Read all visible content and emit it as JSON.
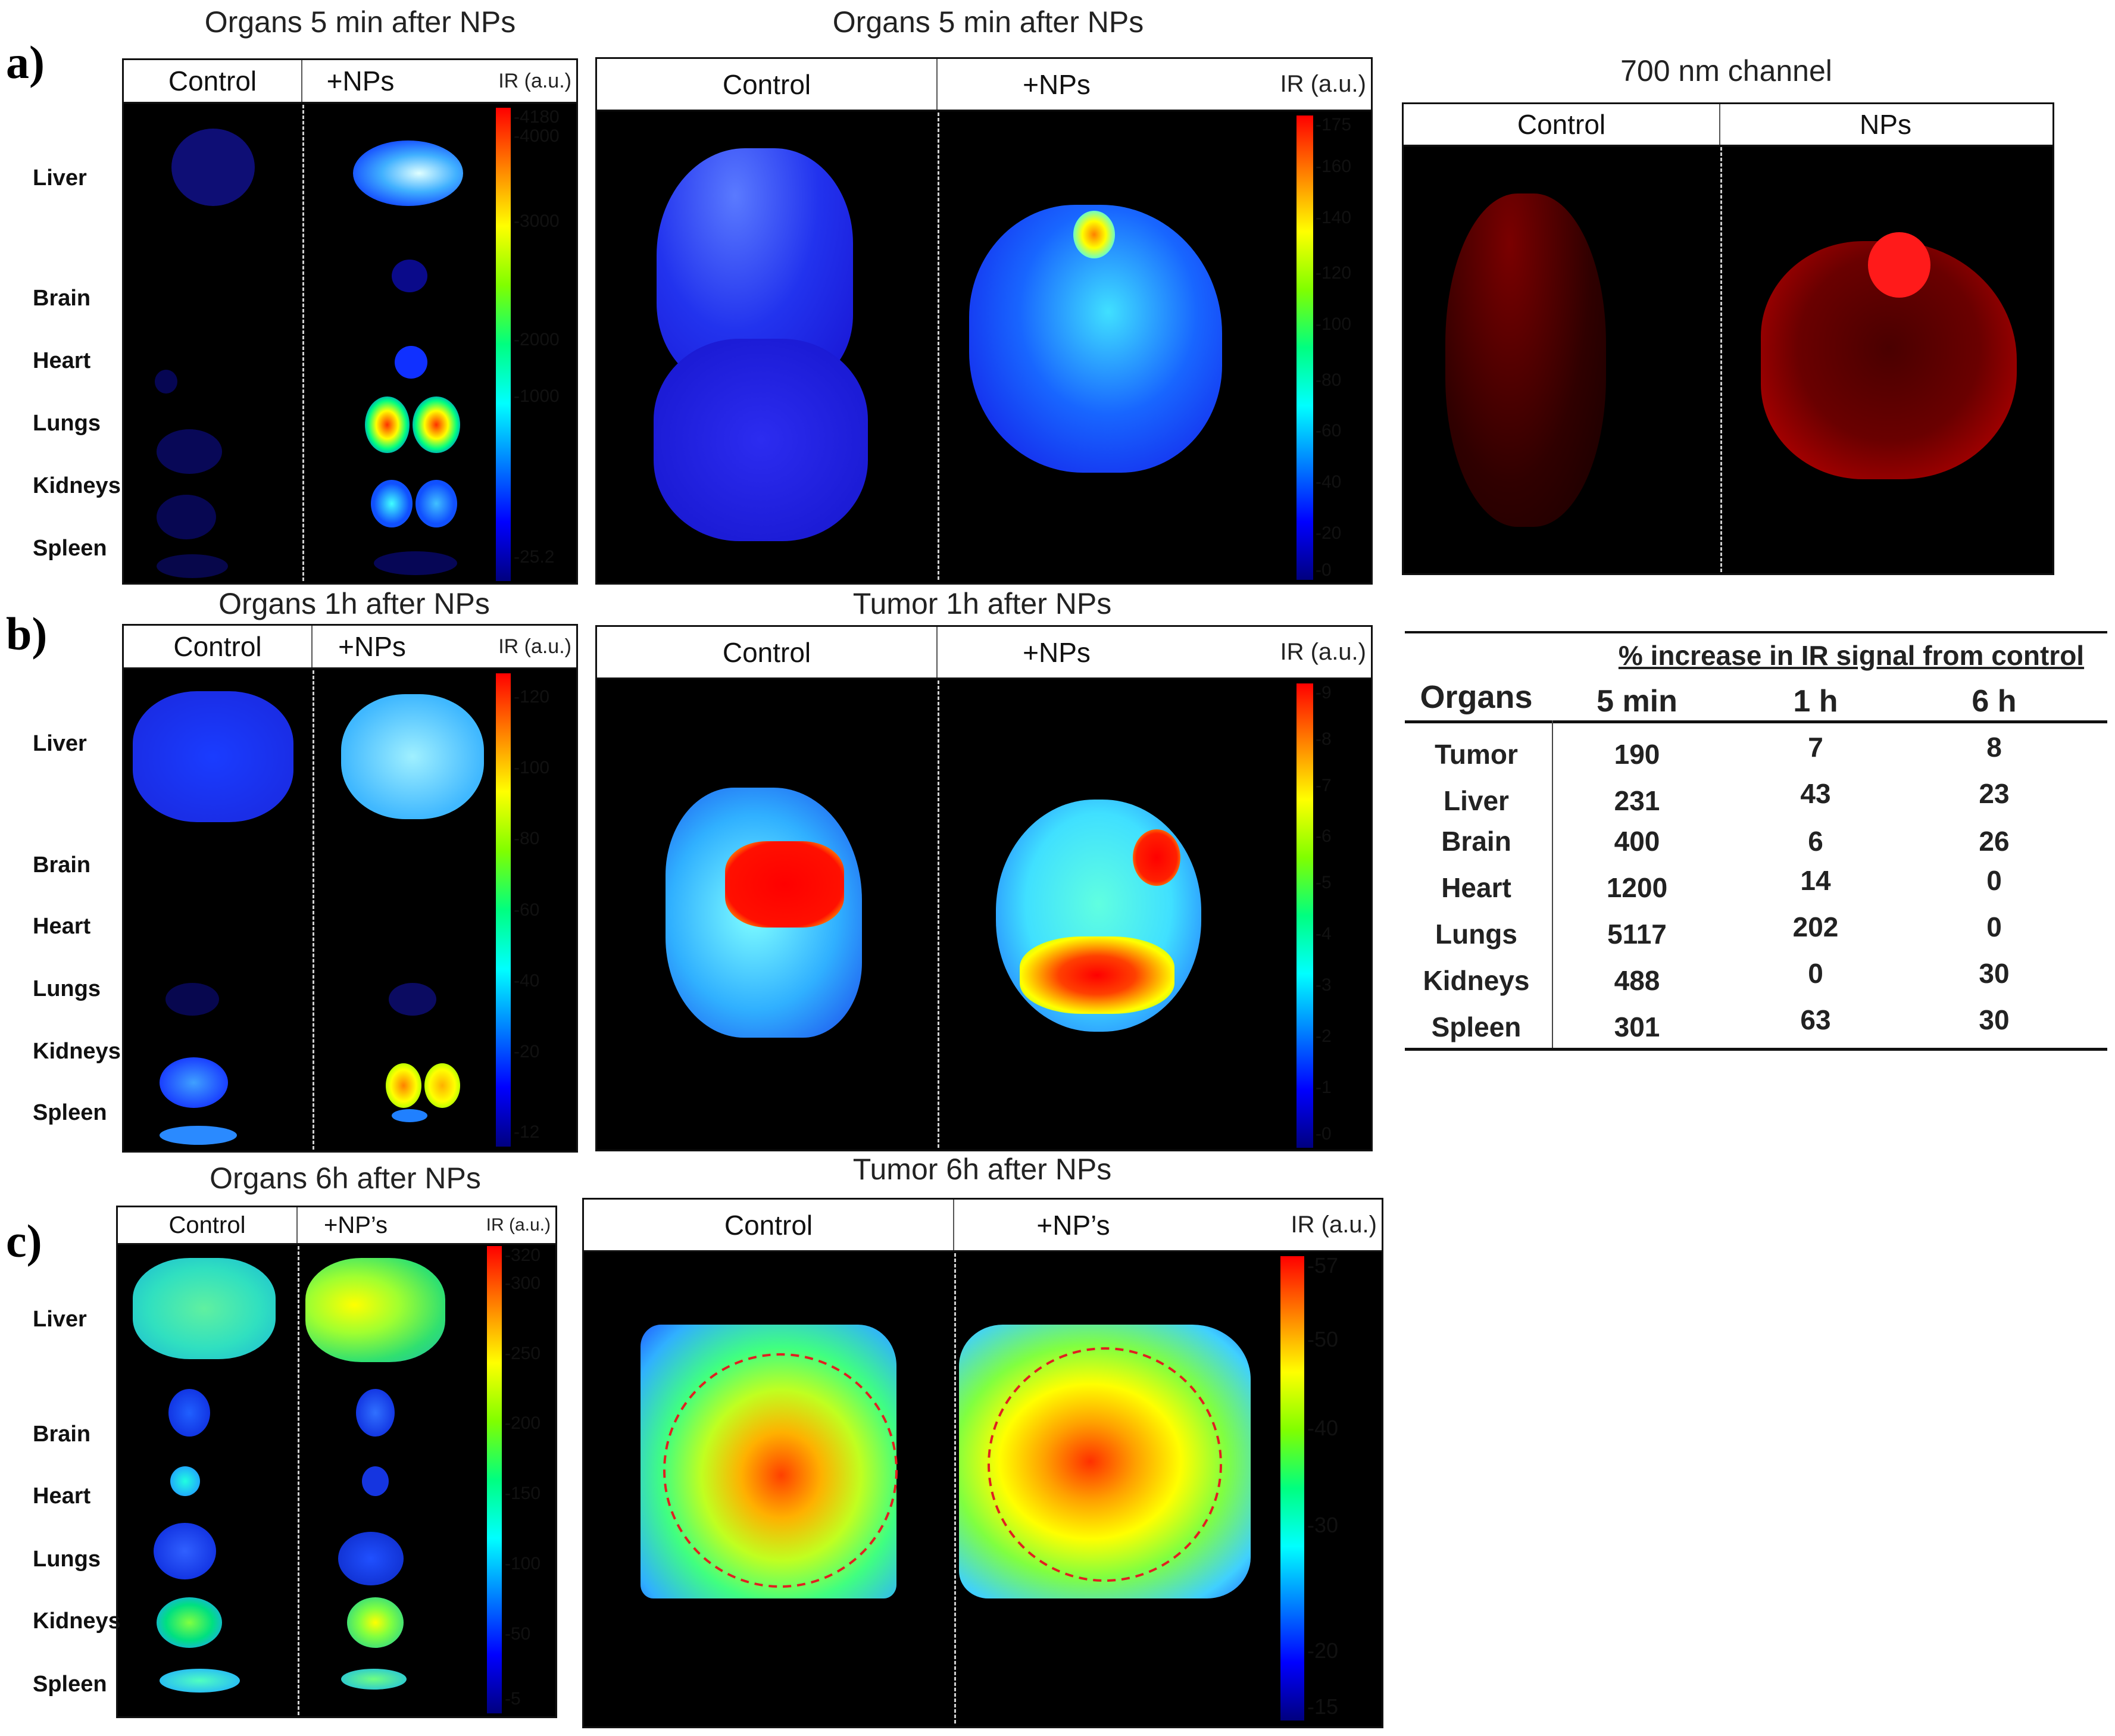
{
  "panel_labels": {
    "a": "a)",
    "b": "b)",
    "c": "c)"
  },
  "row_a": {
    "organs_title": "Organs 5 min after NPs",
    "organs_headers": [
      "Control",
      "+NPs"
    ],
    "organs_ir_unit": "IR (a.u.)",
    "organs_scale": [
      "4180",
      "4000",
      "3000",
      "2000",
      "1000",
      "25.2"
    ],
    "tumor_title": "Organs 5 min after NPs",
    "tumor_headers": [
      "Control",
      "+NPs"
    ],
    "tumor_ir_unit": "IR (a.u.)",
    "tumor_scale": [
      "175",
      "160",
      "140",
      "120",
      "100",
      "80",
      "60",
      "40",
      "20",
      "0"
    ],
    "channel_title": "700 nm channel",
    "channel_headers": [
      "Control",
      "NPs"
    ]
  },
  "row_b": {
    "organs_title": "Organs 1h after NPs",
    "organs_headers": [
      "Control",
      "+NPs"
    ],
    "organs_ir_unit": "IR (a.u.)",
    "organs_scale": [
      "120",
      "100",
      "80",
      "60",
      "40",
      "20",
      "12"
    ],
    "tumor_title": "Tumor 1h after NPs",
    "tumor_headers": [
      "Control",
      "+NPs"
    ],
    "tumor_ir_unit": "IR (a.u.)",
    "tumor_scale": [
      "9",
      "8",
      "7",
      "6",
      "5",
      "4",
      "3",
      "2",
      "1",
      "0"
    ]
  },
  "row_c": {
    "organs_title": "Organs 6h after NPs",
    "organs_headers": [
      "Control",
      "+NP’s"
    ],
    "organs_ir_unit": "IR (a.u.)",
    "organs_scale": [
      "320",
      "300",
      "250",
      "200",
      "150",
      "100",
      "50",
      "5"
    ],
    "tumor_title": "Tumor 6h after NPs",
    "tumor_headers": [
      "Control",
      "+NP’s"
    ],
    "tumor_ir_unit": "IR (a.u.)",
    "tumor_scale": [
      "57",
      "50",
      "40",
      "30",
      "20",
      "15"
    ]
  },
  "organ_names": [
    "Liver",
    "Brain",
    "Heart",
    "Lungs",
    "Kidneys",
    "Spleen"
  ],
  "table": {
    "title": "% increase in IR signal from control",
    "row_header": "Organs",
    "columns": [
      "5 min",
      "1 h",
      "6 h"
    ],
    "rows": [
      {
        "organ": "Tumor",
        "values": [
          "190",
          "7",
          "8"
        ]
      },
      {
        "organ": "Liver",
        "values": [
          "231",
          "43",
          "23"
        ]
      },
      {
        "organ": "Brain",
        "values": [
          "400",
          "6",
          "26"
        ]
      },
      {
        "organ": "Heart",
        "values": [
          "1200",
          "14",
          "0"
        ]
      },
      {
        "organ": "Lungs",
        "values": [
          "5117",
          "202",
          "0"
        ]
      },
      {
        "organ": "Kidneys",
        "values": [
          "488",
          "0",
          "30"
        ]
      },
      {
        "organ": "Spleen",
        "values": [
          "301",
          "63",
          "30"
        ]
      }
    ]
  },
  "colors": {
    "jet": [
      "#00007f",
      "#0000ff",
      "#0080ff",
      "#00ffff",
      "#00ff80",
      "#80ff00",
      "#ffff00",
      "#ff8000",
      "#ff0000"
    ],
    "roi_circle": "#e02020",
    "channel_700": "#ff1a1a"
  }
}
